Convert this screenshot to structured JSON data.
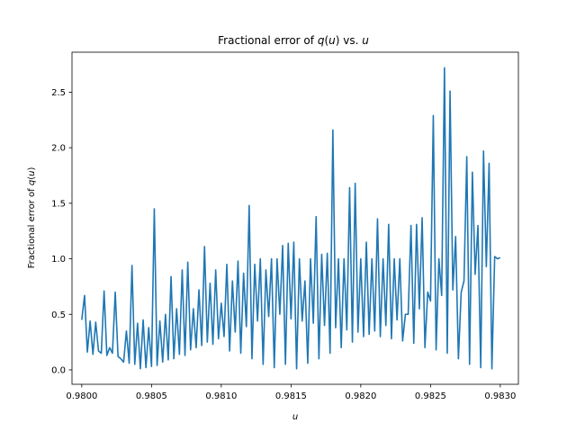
{
  "chart_data": {
    "type": "line",
    "title_parts": {
      "prefix": "Fractional error of ",
      "func": "q",
      "open": "(",
      "var": "u",
      "close": ")",
      "mid": " vs. ",
      "tail": "u"
    },
    "xlabel": "u",
    "ylabel_parts": {
      "prefix": "Fractional error of ",
      "func": "q",
      "open": "(",
      "var": "u",
      "close": ")"
    },
    "xlim": [
      0.97993,
      0.98313
    ],
    "ylim": [
      -0.13,
      2.86
    ],
    "x_ticks": [
      0.98,
      0.9805,
      0.981,
      0.9815,
      0.982,
      0.9825,
      0.983
    ],
    "x_tick_labels": [
      "0.9800",
      "0.9805",
      "0.9810",
      "0.9815",
      "0.9820",
      "0.9825",
      "0.9830"
    ],
    "y_ticks": [
      0.0,
      0.5,
      1.0,
      1.5,
      2.0,
      2.5
    ],
    "y_tick_labels": [
      "0.0",
      "0.5",
      "1.0",
      "1.5",
      "2.0",
      "2.5"
    ],
    "grid": false,
    "series": [
      {
        "color": "#1f77b4",
        "x": [
          0.98,
          0.98002,
          0.98004,
          0.98006,
          0.98008,
          0.9801,
          0.98012,
          0.98014,
          0.98016,
          0.98018,
          0.9802,
          0.98022,
          0.98024,
          0.98026,
          0.98028,
          0.9803,
          0.98032,
          0.98034,
          0.98036,
          0.98038,
          0.9804,
          0.98042,
          0.98044,
          0.98046,
          0.98048,
          0.9805,
          0.98052,
          0.98054,
          0.98056,
          0.98058,
          0.9806,
          0.98062,
          0.98064,
          0.98066,
          0.98068,
          0.9807,
          0.98072,
          0.98074,
          0.98076,
          0.98078,
          0.9808,
          0.98082,
          0.98084,
          0.98086,
          0.98088,
          0.9809,
          0.98092,
          0.98094,
          0.98096,
          0.98098,
          0.981,
          0.98102,
          0.98104,
          0.98106,
          0.98108,
          0.9811,
          0.98112,
          0.98114,
          0.98116,
          0.98118,
          0.9812,
          0.98122,
          0.98124,
          0.98126,
          0.98128,
          0.9813,
          0.98132,
          0.98134,
          0.98136,
          0.98138,
          0.9814,
          0.98142,
          0.98144,
          0.98146,
          0.98148,
          0.9815,
          0.98152,
          0.98154,
          0.98156,
          0.98158,
          0.9816,
          0.98162,
          0.98164,
          0.98166,
          0.98168,
          0.9817,
          0.98172,
          0.98174,
          0.98176,
          0.98178,
          0.9818,
          0.98182,
          0.98184,
          0.98186,
          0.98188,
          0.9819,
          0.98192,
          0.98194,
          0.98196,
          0.98198,
          0.982,
          0.98202,
          0.98204,
          0.98206,
          0.98208,
          0.9821,
          0.98212,
          0.98214,
          0.98216,
          0.98218,
          0.9822,
          0.98222,
          0.98224,
          0.98226,
          0.98228,
          0.9823,
          0.98232,
          0.98234,
          0.98236,
          0.98238,
          0.9824,
          0.98242,
          0.98244,
          0.98246,
          0.98248,
          0.9825,
          0.98252,
          0.98254,
          0.98256,
          0.98258,
          0.9826,
          0.98262,
          0.98264,
          0.98266,
          0.98268,
          0.9827,
          0.98272,
          0.98274,
          0.98276,
          0.98278,
          0.9828,
          0.98282,
          0.98284,
          0.98286,
          0.98288,
          0.9829,
          0.98292,
          0.98294,
          0.98296,
          0.98298,
          0.983
        ],
        "y": [
          0.45,
          0.67,
          0.16,
          0.44,
          0.14,
          0.43,
          0.17,
          0.15,
          0.71,
          0.13,
          0.2,
          0.15,
          0.7,
          0.12,
          0.1,
          0.07,
          0.35,
          0.06,
          0.94,
          0.05,
          0.42,
          0.01,
          0.45,
          0.02,
          0.38,
          0.03,
          1.45,
          0.04,
          0.44,
          0.07,
          0.5,
          0.09,
          0.84,
          0.1,
          0.55,
          0.14,
          0.9,
          0.13,
          0.97,
          0.18,
          0.55,
          0.2,
          0.72,
          0.22,
          1.11,
          0.25,
          0.78,
          0.23,
          0.9,
          0.28,
          0.6,
          0.3,
          0.95,
          0.17,
          0.8,
          0.34,
          0.98,
          0.15,
          0.87,
          0.39,
          1.48,
          0.1,
          0.95,
          0.44,
          1.0,
          0.05,
          0.9,
          0.48,
          1.0,
          0.02,
          1.0,
          0.5,
          1.12,
          0.05,
          1.14,
          0.46,
          1.15,
          0.01,
          1.0,
          0.44,
          0.8,
          0.06,
          1.0,
          0.42,
          1.38,
          0.1,
          1.04,
          0.4,
          1.05,
          0.15,
          2.16,
          0.38,
          1.0,
          0.2,
          1.0,
          0.36,
          1.64,
          0.25,
          1.68,
          0.34,
          1.0,
          0.3,
          1.15,
          0.32,
          1.0,
          0.35,
          1.36,
          0.3,
          1.0,
          0.4,
          1.31,
          0.28,
          1.0,
          0.45,
          1.0,
          0.26,
          0.5,
          0.5,
          1.3,
          0.24,
          1.31,
          0.55,
          1.37,
          0.2,
          0.7,
          0.62,
          2.29,
          0.18,
          1.0,
          0.67,
          2.72,
          0.15,
          2.51,
          0.72,
          1.2,
          0.1,
          0.7,
          0.8,
          1.92,
          0.05,
          1.78,
          0.86,
          1.3,
          0.02,
          1.97,
          0.93,
          1.86,
          0.01,
          1.02,
          1.0,
          1.01
        ]
      }
    ]
  }
}
